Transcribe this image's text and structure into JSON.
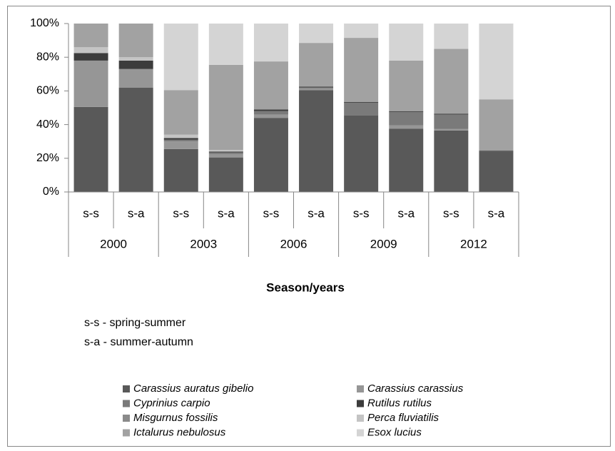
{
  "chart_data": {
    "type": "stacked_bar_100",
    "categories": [
      "s-s",
      "s-a",
      "s-s",
      "s-a",
      "s-s",
      "s-a",
      "s-s",
      "s-a",
      "s-s",
      "s-a"
    ],
    "groups": [
      "2000",
      "2003",
      "2006",
      "2009",
      "2012"
    ],
    "x_label": "Season/years",
    "annotations": [
      "s-s - spring-summer",
      "s-a - summer-autumn"
    ],
    "ylim": [
      0,
      100
    ],
    "yticks": [
      {
        "value": 0,
        "label": "0%"
      },
      {
        "value": 20,
        "label": "20%"
      },
      {
        "value": 40,
        "label": "40%"
      },
      {
        "value": 60,
        "label": "60%"
      },
      {
        "value": 80,
        "label": "80%"
      },
      {
        "value": 100,
        "label": "100%"
      }
    ],
    "grid": false,
    "legend": "bottom",
    "series": [
      {
        "name": "Carassius auratus gibelio",
        "color": "#595959",
        "values": [
          50.5,
          62,
          25.5,
          20.5,
          44,
          60.5,
          45.5,
          37.5,
          36.5,
          24
        ]
      },
      {
        "name": "Carassius carassius",
        "color": "#969696",
        "values": [
          27.5,
          11,
          4.5,
          2,
          2,
          1,
          0,
          2,
          1,
          0
        ]
      },
      {
        "name": "Cyprinius carpio",
        "color": "#7a7a7a",
        "values": [
          0,
          0,
          1,
          1,
          2,
          0.5,
          7.5,
          8,
          8.5,
          0
        ]
      },
      {
        "name": "Rutilus rutilus",
        "color": "#3c3c3c",
        "values": [
          4.5,
          5,
          1,
          0.5,
          1,
          0.5,
          0.5,
          0.5,
          0.5,
          0.5
        ]
      },
      {
        "name": "Misgurnus fossilis",
        "color": "#8a8a8a",
        "values": [
          0,
          0,
          0,
          0,
          0,
          0,
          0,
          0,
          0,
          0
        ]
      },
      {
        "name": "Perca fluviatilis",
        "color": "#c4c4c4",
        "values": [
          3.5,
          2,
          2,
          1,
          0,
          0,
          0,
          0,
          0,
          0
        ]
      },
      {
        "name": "Ictalurus nebulosus",
        "color": "#a2a2a2",
        "values": [
          14,
          20,
          26.5,
          50.5,
          28.5,
          26,
          38,
          30,
          38.5,
          30.5
        ]
      },
      {
        "name": "Esox lucius",
        "color": "#d4d4d4",
        "values": [
          0,
          0,
          39.5,
          24.5,
          22.5,
          11.5,
          8.5,
          22,
          15,
          45
        ]
      }
    ]
  }
}
